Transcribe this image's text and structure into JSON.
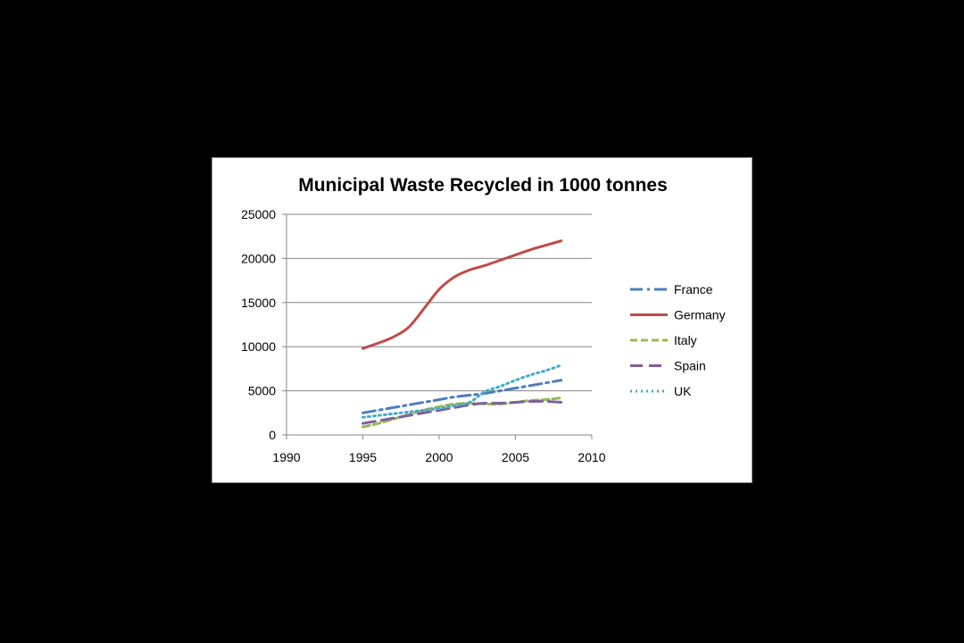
{
  "chart_data": {
    "type": "line",
    "title": "Municipal Waste Recycled in 1000 tonnes",
    "xlabel": "",
    "ylabel": "",
    "xlim": [
      1990,
      2010
    ],
    "ylim": [
      0,
      25000
    ],
    "xticks": [
      1990,
      1995,
      2000,
      2005,
      2010
    ],
    "yticks": [
      0,
      5000,
      10000,
      15000,
      20000,
      25000
    ],
    "grid": "horizontal",
    "legend": "right",
    "x": [
      1995,
      1996,
      1997,
      1998,
      1999,
      2000,
      2001,
      2002,
      2003,
      2004,
      2005,
      2006,
      2007,
      2008
    ],
    "series": [
      {
        "name": "France",
        "color": "#4a7ebb",
        "dash": "14 5 3 5",
        "values": [
          2500,
          2800,
          3100,
          3400,
          3700,
          4000,
          4300,
          4500,
          4700,
          5000,
          5300,
          5600,
          5900,
          6200
        ]
      },
      {
        "name": "Germany",
        "color": "#be4b48",
        "dash": "",
        "values": [
          9800,
          10400,
          11100,
          12200,
          14300,
          16500,
          17900,
          18700,
          19200,
          19800,
          20400,
          21000,
          21500,
          22000
        ]
      },
      {
        "name": "Italy",
        "color": "#98b954",
        "dash": "8 4",
        "values": [
          900,
          1300,
          1800,
          2300,
          2800,
          3200,
          3500,
          3600,
          3500,
          3500,
          3700,
          3900,
          4000,
          4200
        ]
      },
      {
        "name": "Spain",
        "color": "#7d60a0",
        "dash": "14 7",
        "values": [
          1300,
          1600,
          1900,
          2200,
          2500,
          2800,
          3100,
          3400,
          3600,
          3600,
          3700,
          3800,
          3800,
          3700
        ]
      },
      {
        "name": "UK",
        "color": "#46aac5",
        "dash": "2 4",
        "values": [
          2000,
          2200,
          2400,
          2600,
          2800,
          3000,
          3300,
          3700,
          4900,
          5500,
          6200,
          6800,
          7300,
          7900
        ]
      }
    ]
  }
}
